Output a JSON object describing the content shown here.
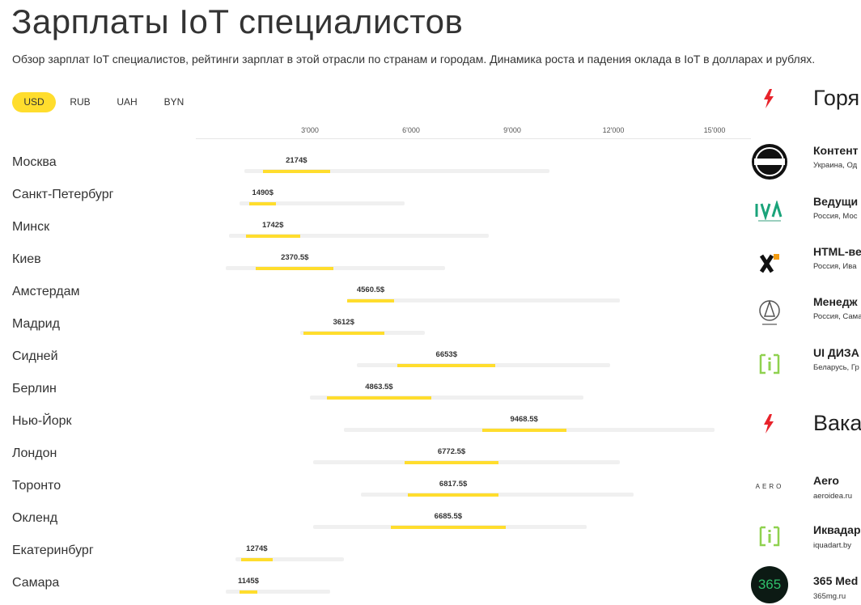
{
  "page": {
    "title": "Зарплаты IoT специалистов",
    "subtitle": "Обзор зарплат IoT специалистов, рейтинги зарплат в этой отрасли по странам и городам. Динамика роста и падения оклада в IoT в долларах и рублях."
  },
  "currency_tabs": [
    {
      "label": "USD",
      "active": true
    },
    {
      "label": "RUB",
      "active": false
    },
    {
      "label": "UAH",
      "active": false
    },
    {
      "label": "BYN",
      "active": false
    }
  ],
  "colors": {
    "accent": "#ffdd2d",
    "range": "#f0f0f0",
    "hot_icon": "#e8232b"
  },
  "chart_data": {
    "type": "bar",
    "orientation": "horizontal",
    "value_suffix": "$",
    "x_ticks": [
      "3'000",
      "6'000",
      "9'000",
      "12'000",
      "15'000"
    ],
    "x_tick_values": [
      3000,
      6000,
      9000,
      12000,
      15000
    ],
    "categories": [
      "Москва",
      "Санкт-Петербург",
      "Минск",
      "Киев",
      "Амстердам",
      "Мадрид",
      "Сидней",
      "Берлин",
      "Нью-Йорк",
      "Лондон",
      "Торонто",
      "Окленд",
      "Екатеринбург",
      "Самара"
    ],
    "values": [
      2174,
      1490,
      1742,
      2370.5,
      4560.5,
      3612,
      6653,
      4863.5,
      9468.5,
      6772.5,
      6817.5,
      6685.5,
      1274,
      1145
    ],
    "value_labels": [
      "2174$",
      "1490$",
      "1742$",
      "2370.5$",
      "4560.5$",
      "3612$",
      "6653$",
      "4863.5$",
      "9468.5$",
      "6772.5$",
      "6817.5$",
      "6685.5$",
      "1274$",
      "1145$"
    ],
    "ranges": [
      [
        1050,
        10100
      ],
      [
        900,
        5800
      ],
      [
        600,
        8300
      ],
      [
        500,
        7000
      ],
      [
        4100,
        12200
      ],
      [
        2700,
        6400
      ],
      [
        4400,
        11900
      ],
      [
        3000,
        11100
      ],
      [
        4000,
        15000
      ],
      [
        3100,
        12200
      ],
      [
        4500,
        12600
      ],
      [
        3100,
        11200
      ],
      [
        800,
        4000
      ],
      [
        500,
        3600
      ]
    ],
    "median_ranges": [
      [
        1600,
        3600
      ],
      [
        1200,
        2000
      ],
      [
        1100,
        2700
      ],
      [
        1400,
        3700
      ],
      [
        4100,
        5500
      ],
      [
        2800,
        5200
      ],
      [
        5600,
        8500
      ],
      [
        3500,
        6600
      ],
      [
        8100,
        10600
      ],
      [
        5800,
        8600
      ],
      [
        5900,
        8600
      ],
      [
        5400,
        8800
      ],
      [
        950,
        1900
      ],
      [
        900,
        1450
      ]
    ]
  },
  "right_sidebar": {
    "hot_jobs": {
      "title": "Горя",
      "items": [
        {
          "title": "Контент",
          "meta": "Украина, Од",
          "logo": "isminimal-logo"
        },
        {
          "title": "Ведущи",
          "meta": "Россия, Мос",
          "logo": "iva-logo"
        },
        {
          "title": "HTML-ве",
          "meta": "Россия, Ива",
          "logo": "x-logo"
        },
        {
          "title": "Менедж",
          "meta": "Россия, Сама",
          "logo": "bell-logo"
        },
        {
          "title": "UI ДИЗА",
          "meta": "Беларусь, Гр",
          "logo": "iquadart-logo"
        }
      ]
    },
    "vacancies": {
      "title": "Вака",
      "items": [
        {
          "title": "Aero",
          "meta": "aeroidea.ru",
          "logo": "aero-logo",
          "logo_text": "AERO"
        },
        {
          "title": "Иквадар",
          "meta": "iquadart.by",
          "logo": "iquadart-logo"
        },
        {
          "title": "365 Med",
          "meta": "365mg.ru",
          "logo": "365-logo",
          "logo_text": "365"
        }
      ]
    }
  }
}
